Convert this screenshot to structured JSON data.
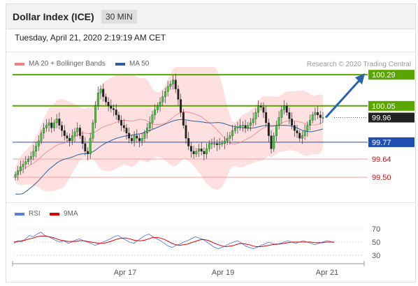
{
  "header": {
    "title": "Dollar Index (ICE)",
    "timeframe": "30 MIN"
  },
  "datetime": "Tuesday, April 21, 2020 2:19:19 AM CET",
  "legend": {
    "ma20": "MA 20 + Bollinger Bands",
    "ma50": "MA 50",
    "credit": "Research © 2020 Trading Central",
    "rsi": "RSI",
    "ma9": "9MA"
  },
  "colors": {
    "resistance": "#5aa600",
    "support": "#1f4fb0",
    "band": "#ffd6d6",
    "ma20": "#f08080",
    "ma50": "#2f5f9f",
    "up": "#33cc33",
    "down": "#222222",
    "rsi": "#5b7ddc",
    "ma9": "#e00000",
    "arrow": "#2a63ad"
  },
  "chart_data": [
    {
      "type": "candlestick",
      "title": "Dollar Index (ICE)",
      "timeframe": "30 MIN",
      "x_ticks": [
        "Apr 17",
        "Apr 19",
        "Apr 21"
      ],
      "ylim": [
        99.35,
        100.35
      ],
      "levels": [
        {
          "value": 100.29,
          "label": "100.29",
          "kind": "resistance"
        },
        {
          "value": 100.05,
          "label": "100.05",
          "kind": "resistance"
        },
        {
          "value": 99.96,
          "label": "99.96",
          "kind": "last"
        },
        {
          "value": 99.77,
          "label": "99.77",
          "kind": "pivot"
        },
        {
          "value": 99.64,
          "label": "99.64",
          "kind": "support"
        },
        {
          "value": 99.5,
          "label": "99.50",
          "kind": "support"
        }
      ],
      "forecast": {
        "from": 99.96,
        "to": 100.29
      },
      "closes": [
        99.52,
        99.55,
        99.58,
        99.6,
        99.62,
        99.64,
        99.66,
        99.7,
        99.74,
        99.78,
        99.84,
        99.88,
        99.9,
        99.92,
        99.88,
        99.92,
        99.95,
        99.9,
        99.86,
        99.82,
        99.8,
        99.78,
        99.82,
        99.85,
        99.88,
        99.82,
        99.76,
        99.7,
        99.68,
        99.8,
        99.92,
        100.05,
        100.15,
        100.18,
        100.12,
        100.08,
        100.05,
        100.03,
        100.02,
        99.98,
        99.94,
        99.9,
        99.88,
        99.84,
        99.8,
        99.78,
        99.82,
        99.8,
        99.78,
        99.8,
        99.84,
        99.88,
        99.92,
        99.98,
        100.02,
        100.05,
        100.08,
        100.12,
        100.16,
        100.2,
        100.22,
        100.25,
        100.18,
        100.1,
        100.0,
        99.9,
        99.8,
        99.74,
        99.7,
        99.68,
        99.7,
        99.72,
        99.7,
        99.68,
        99.72,
        99.76,
        99.76,
        99.76,
        99.75,
        99.76,
        99.76,
        99.78,
        99.8,
        99.82,
        99.86,
        99.88,
        99.89,
        99.9,
        99.9,
        99.88,
        99.9,
        99.92,
        99.95,
        100.0,
        100.05,
        100.04,
        100.0,
        99.92,
        99.82,
        99.72,
        99.82,
        99.9,
        99.96,
        100.02,
        100.05,
        100.0,
        99.95,
        99.9,
        99.86,
        99.84,
        99.8,
        99.82,
        99.86,
        99.9,
        99.94,
        99.98,
        100.0,
        99.98,
        99.96,
        99.96
      ]
    },
    {
      "type": "line",
      "title": "RSI",
      "yticks": [
        70,
        50,
        30
      ],
      "series": [
        {
          "name": "RSI",
          "values": [
            48,
            52,
            50,
            55,
            60,
            58,
            62,
            65,
            60,
            58,
            55,
            52,
            50,
            52,
            48,
            50,
            53,
            55,
            52,
            50,
            48,
            45,
            47,
            50,
            52,
            55,
            58,
            60,
            56,
            53,
            50,
            48,
            52,
            56,
            60,
            62,
            58,
            55,
            52,
            48,
            44,
            42,
            45,
            47,
            50,
            52,
            55,
            58,
            56,
            54,
            50,
            46,
            42,
            40,
            42,
            45,
            48,
            50,
            52,
            48,
            44,
            42,
            40,
            42,
            45,
            47,
            50,
            48,
            46,
            48,
            50,
            52,
            50,
            48,
            50,
            52,
            50,
            48,
            46,
            48,
            50,
            52,
            51,
            49
          ]
        },
        {
          "name": "9MA",
          "values": [
            50,
            51,
            52,
            53,
            55,
            56,
            58,
            59,
            59,
            58,
            57,
            55,
            53,
            52,
            51,
            51,
            51,
            52,
            52,
            51,
            50,
            49,
            48,
            48,
            49,
            51,
            53,
            55,
            56,
            56,
            55,
            53,
            52,
            52,
            53,
            55,
            57,
            57,
            56,
            54,
            51,
            48,
            46,
            45,
            46,
            47,
            49,
            51,
            53,
            54,
            53,
            51,
            48,
            46,
            44,
            43,
            44,
            45,
            47,
            48,
            47,
            46,
            44,
            43,
            43,
            44,
            45,
            46,
            47,
            47,
            48,
            49,
            50,
            50,
            50,
            50,
            50,
            50,
            49,
            49,
            49,
            50,
            50,
            50
          ]
        }
      ]
    }
  ]
}
